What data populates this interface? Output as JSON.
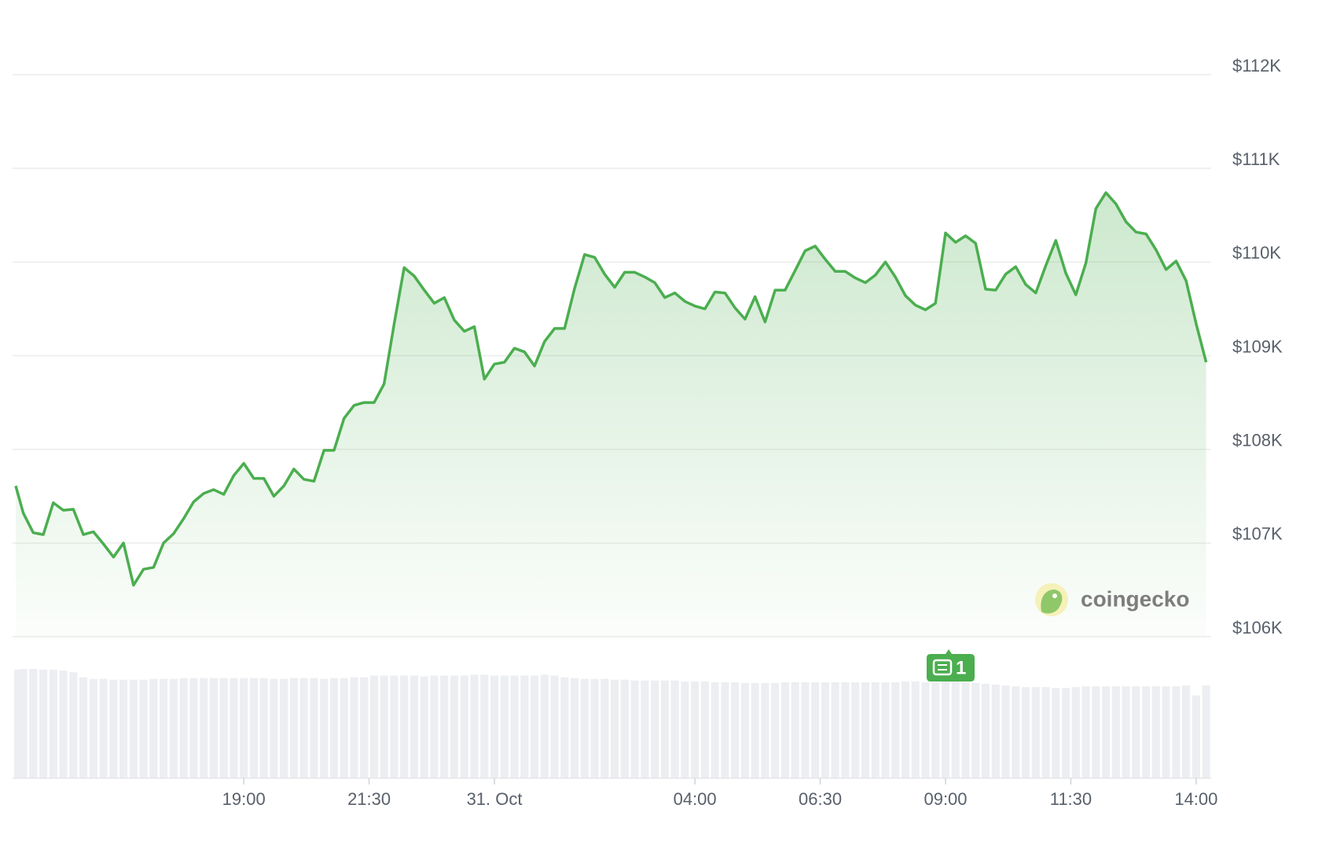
{
  "chart_data": {
    "type": "line",
    "color": "#4bae4f",
    "ylim": [
      106000,
      112000
    ],
    "yticks": [
      {
        "value": 106000,
        "label": "$106K"
      },
      {
        "value": 107000,
        "label": "$107K"
      },
      {
        "value": 108000,
        "label": "$108K"
      },
      {
        "value": 109000,
        "label": "$109K"
      },
      {
        "value": 110000,
        "label": "$110K"
      },
      {
        "value": 111000,
        "label": "$111K"
      },
      {
        "value": 112000,
        "label": "$112K"
      }
    ],
    "xlim": [
      -9.55,
      14.3
    ],
    "xticks": [
      {
        "value": -5,
        "label": "19:00"
      },
      {
        "value": -2.5,
        "label": "21:30"
      },
      {
        "value": 0,
        "label": "31. Oct"
      },
      {
        "value": 4,
        "label": "04:00"
      },
      {
        "value": 6.5,
        "label": "06:30"
      },
      {
        "value": 9,
        "label": "09:00"
      },
      {
        "value": 11.5,
        "label": "11:30"
      },
      {
        "value": 14,
        "label": "14:00"
      }
    ],
    "grid": true,
    "x": [
      -9.55,
      -9.4,
      -9.2,
      -9.0,
      -8.8,
      -8.6,
      -8.4,
      -8.2,
      -8.0,
      -7.8,
      -7.6,
      -7.4,
      -7.2,
      -7.0,
      -6.8,
      -6.6,
      -6.4,
      -6.2,
      -6.0,
      -5.8,
      -5.6,
      -5.4,
      -5.2,
      -5.0,
      -4.8,
      -4.6,
      -4.4,
      -4.2,
      -4.0,
      -3.8,
      -3.6,
      -3.4,
      -3.2,
      -3.0,
      -2.8,
      -2.6,
      -2.4,
      -2.2,
      -2.0,
      -1.8,
      -1.6,
      -1.4,
      -1.2,
      -1.0,
      -0.8,
      -0.6,
      -0.4,
      -0.2,
      0,
      0.2,
      0.4,
      0.6,
      0.8,
      1.0,
      1.2,
      1.4,
      1.6,
      1.8,
      2.0,
      2.2,
      2.4,
      2.6,
      2.8,
      3.0,
      3.2,
      3.4,
      3.6,
      3.8,
      4.0,
      4.2,
      4.4,
      4.6,
      4.8,
      5.0,
      5.2,
      5.4,
      5.6,
      5.8,
      6.0,
      6.2,
      6.4,
      6.6,
      6.8,
      7.0,
      7.2,
      7.4,
      7.6,
      7.8,
      8.0,
      8.2,
      8.4,
      8.6,
      8.8,
      9.0,
      9.2,
      9.4,
      9.6,
      9.8,
      10.0,
      10.2,
      10.4,
      10.6,
      10.8,
      11.0,
      11.2,
      11.4,
      11.6,
      11.8,
      12.0,
      12.2,
      12.4,
      12.6,
      12.8,
      13.0,
      13.2,
      13.4,
      13.6,
      13.8,
      14.0,
      14.2
    ],
    "values": [
      107610,
      107320,
      107110,
      107090,
      107430,
      107350,
      107360,
      107090,
      107120,
      106990,
      106850,
      107000,
      106550,
      106720,
      106740,
      107000,
      107100,
      107260,
      107440,
      107530,
      107570,
      107520,
      107720,
      107850,
      107690,
      107690,
      107500,
      107610,
      107790,
      107680,
      107660,
      107990,
      107990,
      108330,
      108470,
      108500,
      108500,
      108700,
      109340,
      109940,
      109850,
      109700,
      109560,
      109620,
      109380,
      109260,
      109310,
      108750,
      108910,
      108930,
      109080,
      109040,
      108890,
      109150,
      109290,
      109290,
      109720,
      110080,
      110050,
      109870,
      109730,
      109890,
      109890,
      109840,
      109780,
      109620,
      109670,
      109580,
      109530,
      109500,
      109680,
      109670,
      109510,
      109390,
      109630,
      109360,
      109700,
      109700,
      109910,
      110120,
      110170,
      110030,
      109900,
      109900,
      109830,
      109780,
      109860,
      110000,
      109840,
      109640,
      109540,
      109490,
      109560,
      110310,
      110210,
      110280,
      110200,
      109710,
      109700,
      109870,
      109950,
      109760,
      109670,
      109960,
      110230,
      109880,
      109650,
      109990,
      110570,
      110740,
      110620,
      110430,
      110320,
      110300,
      110130,
      109920,
      110010,
      109800,
      109340,
      108930
    ],
    "volume": [
      131,
      132,
      132,
      131,
      131,
      130,
      128,
      122,
      120,
      120,
      119,
      119,
      119,
      119,
      120,
      120,
      120,
      121,
      121,
      121,
      121,
      121,
      121,
      121,
      121,
      121,
      120,
      120,
      121,
      121,
      121,
      120,
      121,
      121,
      122,
      122,
      124,
      124,
      124,
      124,
      124,
      123,
      124,
      124,
      124,
      124,
      125,
      125,
      124,
      124,
      124,
      124,
      124,
      125,
      124,
      122,
      121,
      120,
      120,
      120,
      119,
      119,
      118,
      118,
      118,
      118,
      118,
      117,
      117,
      117,
      116,
      116,
      116,
      115,
      115,
      115,
      115,
      116,
      116,
      116,
      116,
      116,
      116,
      116,
      116,
      116,
      116,
      116,
      116,
      117,
      117,
      116,
      116,
      117,
      117,
      116,
      115,
      114,
      113,
      112,
      111,
      110,
      110,
      110,
      109,
      109,
      110,
      111,
      111,
      111,
      111,
      111,
      111,
      111,
      111,
      111,
      111,
      112,
      100,
      112
    ],
    "annotation": "1",
    "watermark": "coingecko"
  }
}
